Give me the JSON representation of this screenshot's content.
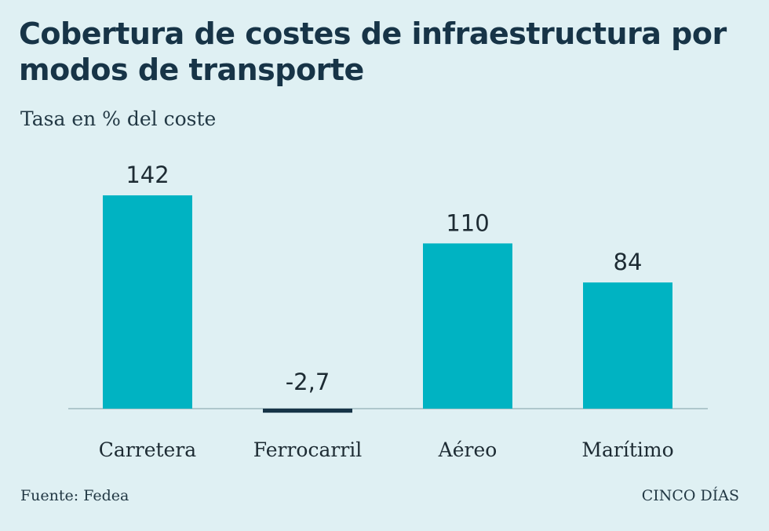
{
  "chart_data": {
    "type": "bar",
    "title": "Cobertura de costes de infraestructura por modos de transporte",
    "subtitle": "Tasa en % del coste",
    "categories": [
      "Carretera",
      "Ferrocarril",
      "Aéreo",
      "Marítimo"
    ],
    "values": [
      142,
      -2.7,
      110,
      84
    ],
    "value_labels": [
      "142",
      "-2,7",
      "110",
      "84"
    ],
    "grid": false,
    "legend": "none",
    "colors": {
      "positive": "#00b3c2",
      "negative": "#173447",
      "baseline": "#9fb9c0"
    }
  },
  "footer": {
    "source": "Fuente: Fedea",
    "brand": "CINCO DÍAS"
  }
}
